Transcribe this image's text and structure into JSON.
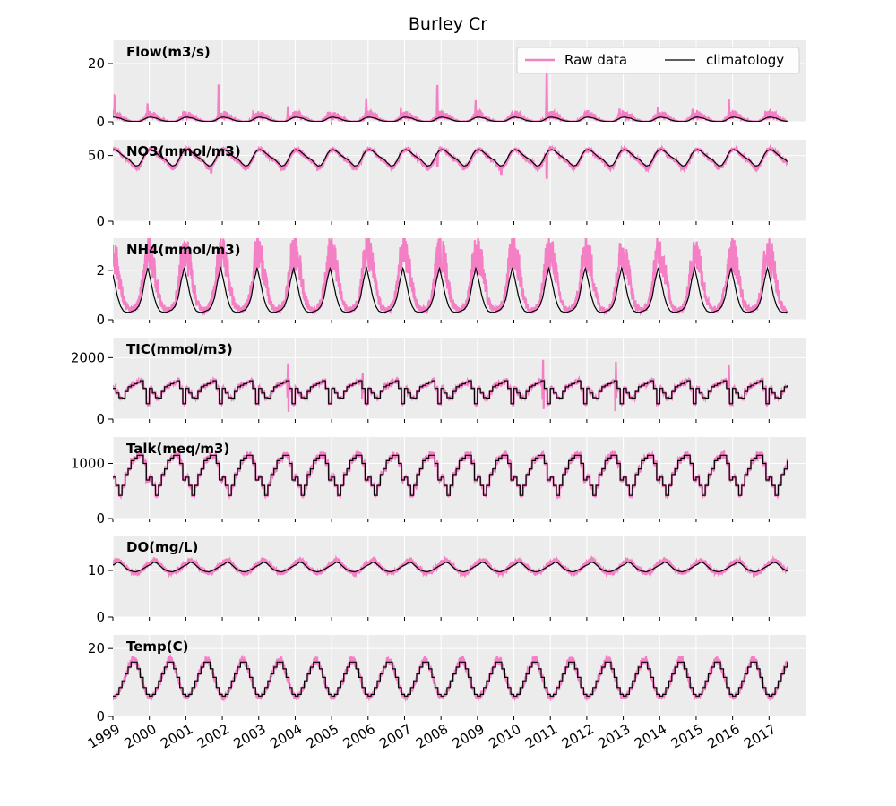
{
  "chart_data": {
    "type": "line",
    "title": "Burley Cr",
    "x_years": [
      1999,
      2000,
      2001,
      2002,
      2003,
      2004,
      2005,
      2006,
      2007,
      2008,
      2009,
      2010,
      2011,
      2012,
      2013,
      2014,
      2015,
      2016,
      2017
    ],
    "xlim": [
      "1999-01-01",
      "2017-12-31"
    ],
    "x_tick_labels": [
      "1999",
      "2000",
      "2001",
      "2002",
      "2003",
      "2004",
      "2005",
      "2006",
      "2007",
      "2008",
      "2009",
      "2010",
      "2011",
      "2012",
      "2013",
      "2014",
      "2015",
      "2016",
      "2017"
    ],
    "legend": {
      "placement": "top-right",
      "entries": [
        "Raw data",
        "climatology"
      ]
    },
    "colors": {
      "raw": "#f47fc4",
      "climatology": "#000000",
      "panel_bg": "#ececec",
      "grid": "#ffffff"
    },
    "grid": true,
    "panels": [
      {
        "label": "Flow(m3/s)",
        "ylim": [
          0,
          28
        ],
        "yticks": [
          0,
          20
        ],
        "style": "smooth",
        "climatology_monthly": [
          1.6,
          1.4,
          1.2,
          0.7,
          0.4,
          0.2,
          0.1,
          0.1,
          0.1,
          0.4,
          1.0,
          1.5
        ],
        "raw_monthly_amplitude": [
          2.4,
          2.0,
          1.6,
          0.9,
          0.5,
          0.2,
          0.1,
          0.1,
          0.1,
          0.5,
          1.3,
          2.2
        ],
        "raw_peaks": [
          [
            1999.05,
            11
          ],
          [
            1999.95,
            7
          ],
          [
            2001.9,
            14
          ],
          [
            2002.85,
            4
          ],
          [
            2003.8,
            6
          ],
          [
            2004.9,
            4
          ],
          [
            2005.95,
            9.5
          ],
          [
            2006.9,
            5
          ],
          [
            2007.9,
            15
          ],
          [
            2008.95,
            8
          ],
          [
            2009.95,
            4
          ],
          [
            2010.9,
            21
          ],
          [
            2011.9,
            2.5
          ],
          [
            2012.9,
            5
          ],
          [
            2013.95,
            6
          ],
          [
            2014.9,
            5
          ],
          [
            2015.9,
            9.5
          ],
          [
            2016.9,
            4
          ]
        ]
      },
      {
        "label": "NO3(mmol/m3)",
        "ylim": [
          0,
          62
        ],
        "yticks": [
          0,
          50
        ],
        "style": "smooth",
        "climatology_monthly": [
          54.5,
          53.5,
          51.5,
          49.5,
          48.0,
          46.5,
          44.0,
          42.0,
          42.5,
          46.0,
          51.0,
          54.0
        ],
        "raw_monthly_amplitude": [
          55,
          54,
          51,
          49,
          47,
          46,
          43,
          40,
          41,
          45,
          50,
          54
        ],
        "raw_dips": [
          [
            2001.7,
            37
          ],
          [
            2007.9,
            42
          ],
          [
            2009.65,
            36
          ],
          [
            2010.9,
            33
          ]
        ]
      },
      {
        "label": "NH4(mmol/m3)",
        "ylim": [
          0,
          3.3
        ],
        "yticks": [
          0,
          2
        ],
        "style": "smooth",
        "climatology_monthly": [
          1.55,
          0.95,
          0.55,
          0.35,
          0.3,
          0.3,
          0.35,
          0.4,
          0.55,
          0.9,
          1.6,
          2.1
        ],
        "raw_monthly_amplitude": [
          2.6,
          2.2,
          1.4,
          0.8,
          0.5,
          0.4,
          0.4,
          0.5,
          0.7,
          1.3,
          2.3,
          2.7
        ]
      },
      {
        "label": "TIC(mmol/m3)",
        "ylim": [
          0,
          2650
        ],
        "yticks": [
          0,
          2000
        ],
        "style": "step",
        "climatology_monthly": [
          1000,
          850,
          700,
          680,
          900,
          1050,
          1100,
          1150,
          1200,
          1250,
          1000,
          500
        ],
        "raw_peaks": [
          [
            2003.8,
            2050
          ],
          [
            2005.85,
            1750
          ],
          [
            2010.8,
            2080
          ],
          [
            2012.8,
            2080
          ],
          [
            2015.9,
            2100
          ]
        ]
      },
      {
        "label": "Talk(meq/m3)",
        "ylim": [
          0,
          1480
        ],
        "yticks": [
          0,
          1000
        ],
        "style": "step",
        "climatology_monthly": [
          750,
          600,
          420,
          600,
          800,
          900,
          1050,
          1100,
          1150,
          1150,
          1000,
          700
        ]
      },
      {
        "label": "DO(mg/L)",
        "ylim": [
          0,
          17.5
        ],
        "yticks": [
          0,
          10
        ],
        "style": "smooth",
        "climatology_monthly": [
          11.3,
          11.8,
          11.6,
          11.0,
          10.4,
          10.0,
          9.8,
          9.7,
          9.9,
          10.2,
          10.6,
          11.0
        ],
        "raw_monthly_amplitude": [
          11.8,
          12.3,
          12.0,
          11.3,
          10.6,
          10.0,
          9.6,
          9.4,
          9.6,
          10.0,
          10.7,
          11.4
        ]
      },
      {
        "label": "Temp(C)",
        "ylim": [
          0,
          24
        ],
        "yticks": [
          0,
          20
        ],
        "style": "step",
        "climatology_monthly": [
          6.0,
          6.5,
          8.5,
          10.5,
          12.5,
          14.5,
          16.0,
          16.0,
          14.0,
          11.5,
          8.5,
          6.5
        ],
        "raw_monthly_amplitude": [
          5.5,
          6.5,
          8.0,
          10.0,
          13.0,
          15.0,
          16.8,
          16.5,
          14.0,
          11.0,
          8.0,
          6.0
        ]
      }
    ]
  }
}
